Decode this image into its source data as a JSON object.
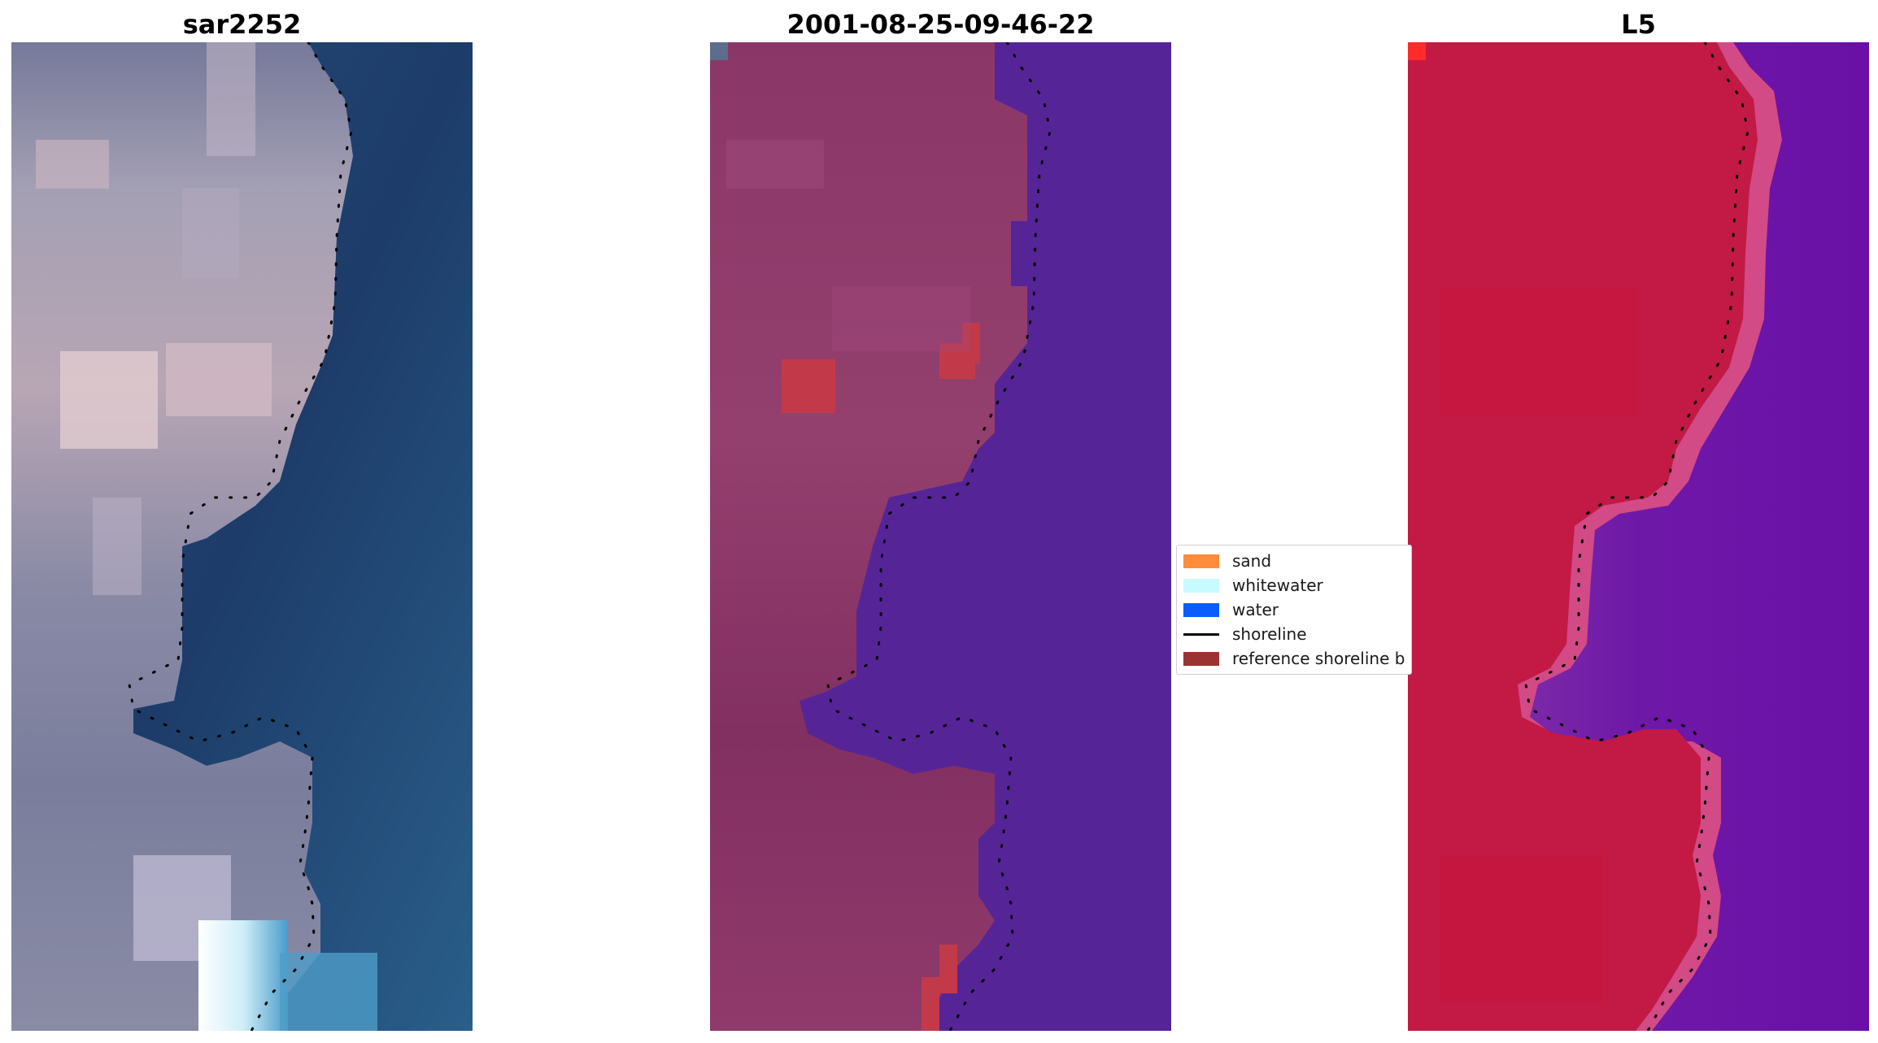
{
  "panels": [
    {
      "title": "sar2252"
    },
    {
      "title": "2001-08-25-09-46-22"
    },
    {
      "title": "L5"
    }
  ],
  "legend": {
    "items": [
      {
        "label": "sand",
        "color": "#ff8c3a",
        "kind": "patch"
      },
      {
        "label": "whitewater",
        "color": "#c8fbff",
        "kind": "patch"
      },
      {
        "label": "water",
        "color": "#0a5cff",
        "kind": "patch"
      },
      {
        "label": "shoreline",
        "color": "#000000",
        "kind": "line"
      },
      {
        "label": "reference shoreline b",
        "color": "#9b3333",
        "kind": "patch"
      }
    ]
  },
  "colors": {
    "water_dark": "#1f3d6b",
    "land_gray": "#6f7392",
    "classified_land": "#8a3a6a",
    "classified_water": "#552598",
    "reference_buffer": "#c23a4a",
    "index_land": "#c21a44",
    "index_water": "#6a10a6"
  }
}
